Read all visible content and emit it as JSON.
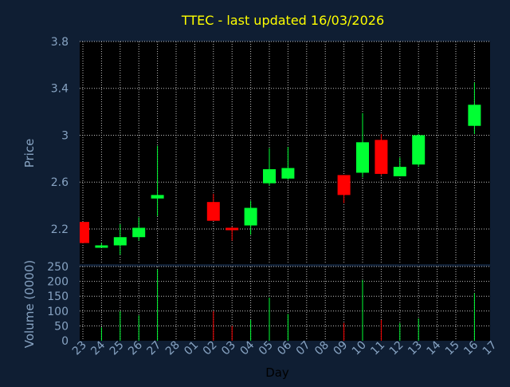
{
  "title": "TTEC - last updated 16/03/2026",
  "colors": {
    "background": "#0f1e33",
    "plot_background": "#000000",
    "grid": "#bfbfbf",
    "text": "#87a3c2",
    "title": "#ffff00",
    "up": "#00ff33",
    "down": "#ff0000"
  },
  "chart_data": [
    {
      "type": "candlestick",
      "ylabel": "Price",
      "ylim": [
        1.9,
        3.8
      ],
      "yticks": [
        2.2,
        2.6,
        3,
        3.4,
        3.8
      ],
      "ytick_labels": [
        "2.2",
        "2.6",
        "3",
        "3.4",
        "3.8"
      ],
      "grid": true,
      "candles": [
        {
          "day": "23",
          "open": 2.26,
          "high": 2.26,
          "low": 2.08,
          "close": 2.08
        },
        {
          "day": "24",
          "open": 2.04,
          "high": 2.08,
          "low": 2.04,
          "close": 2.06
        },
        {
          "day": "25",
          "open": 2.06,
          "high": 2.24,
          "low": 1.98,
          "close": 2.13
        },
        {
          "day": "26",
          "open": 2.13,
          "high": 2.3,
          "low": 2.1,
          "close": 2.21
        },
        {
          "day": "27",
          "open": 2.46,
          "high": 2.91,
          "low": 2.31,
          "close": 2.49
        },
        {
          "day": "02",
          "open": 2.43,
          "high": 2.5,
          "low": 2.28,
          "close": 2.27
        },
        {
          "day": "03",
          "open": 2.21,
          "high": 2.22,
          "low": 2.1,
          "close": 2.19
        },
        {
          "day": "04",
          "open": 2.23,
          "high": 2.44,
          "low": 2.15,
          "close": 2.38
        },
        {
          "day": "05",
          "open": 2.59,
          "high": 2.89,
          "low": 2.57,
          "close": 2.71
        },
        {
          "day": "06",
          "open": 2.63,
          "high": 2.9,
          "low": 2.62,
          "close": 2.72
        },
        {
          "day": "09",
          "open": 2.66,
          "high": 2.66,
          "low": 2.42,
          "close": 2.49
        },
        {
          "day": "10",
          "open": 2.68,
          "high": 3.19,
          "low": 2.64,
          "close": 2.94
        },
        {
          "day": "11",
          "open": 2.96,
          "high": 3.01,
          "low": 2.66,
          "close": 2.67
        },
        {
          "day": "12",
          "open": 2.65,
          "high": 2.81,
          "low": 2.65,
          "close": 2.73
        },
        {
          "day": "13",
          "open": 2.75,
          "high": 3.01,
          "low": 2.73,
          "close": 3.0
        },
        {
          "day": "16",
          "open": 3.08,
          "high": 3.45,
          "low": 3.01,
          "close": 3.26
        }
      ]
    },
    {
      "type": "bar",
      "ylabel": "Volume (0000)",
      "xlabel": "Day",
      "ylim": [
        0,
        250
      ],
      "yticks": [
        0,
        50,
        100,
        150,
        200,
        250
      ],
      "ytick_labels": [
        "0",
        "50",
        "100",
        "150",
        "200",
        "250"
      ],
      "categories": [
        "23",
        "24",
        "25",
        "26",
        "27",
        "28",
        "01",
        "02",
        "03",
        "04",
        "05",
        "06",
        "07",
        "08",
        "09",
        "10",
        "11",
        "12",
        "13",
        "14",
        "15",
        "16",
        "17"
      ],
      "volumes": [
        {
          "day": "24",
          "value": 45,
          "dir": "up"
        },
        {
          "day": "25",
          "value": 100,
          "dir": "up"
        },
        {
          "day": "26",
          "value": 85,
          "dir": "up"
        },
        {
          "day": "27",
          "value": 240,
          "dir": "up"
        },
        {
          "day": "02",
          "value": 100,
          "dir": "down"
        },
        {
          "day": "03",
          "value": 50,
          "dir": "down"
        },
        {
          "day": "04",
          "value": 70,
          "dir": "up"
        },
        {
          "day": "05",
          "value": 145,
          "dir": "up"
        },
        {
          "day": "06",
          "value": 90,
          "dir": "up"
        },
        {
          "day": "09",
          "value": 60,
          "dir": "down"
        },
        {
          "day": "10",
          "value": 205,
          "dir": "up"
        },
        {
          "day": "11",
          "value": 70,
          "dir": "down"
        },
        {
          "day": "12",
          "value": 60,
          "dir": "up"
        },
        {
          "day": "13",
          "value": 75,
          "dir": "up"
        },
        {
          "day": "16",
          "value": 160,
          "dir": "up"
        }
      ]
    }
  ]
}
